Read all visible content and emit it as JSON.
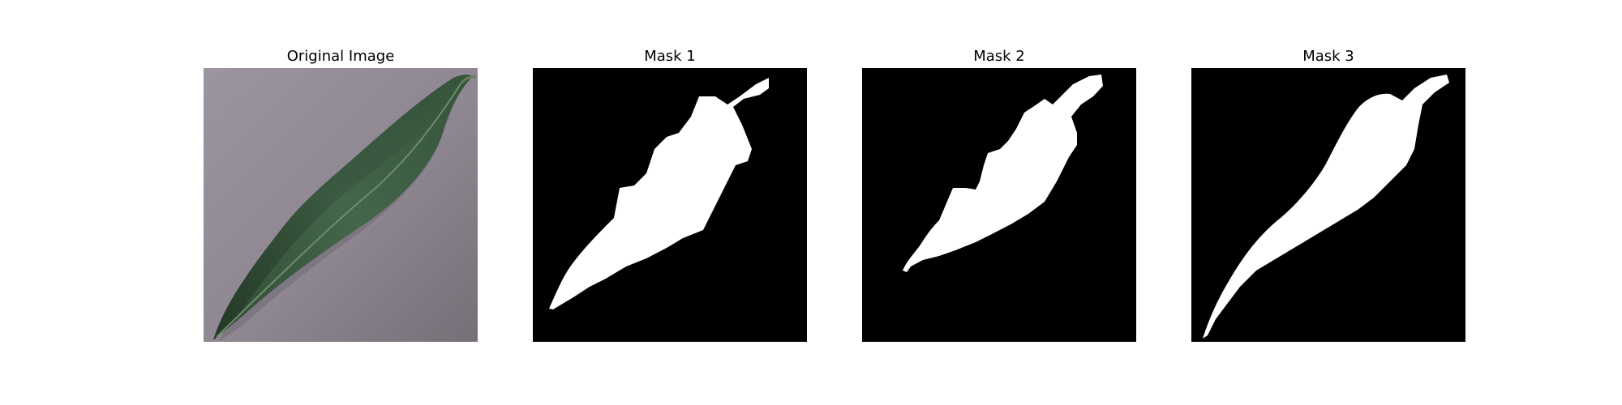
{
  "panels": [
    {
      "title": "Original Image"
    },
    {
      "title": "Mask 1"
    },
    {
      "title": "Mask 2"
    },
    {
      "title": "Mask 3"
    }
  ],
  "colors": {
    "mask_background": "#000000",
    "mask_foreground": "#ffffff",
    "leaf_green": "#3f5f43",
    "table_surface": "#8f8791"
  }
}
